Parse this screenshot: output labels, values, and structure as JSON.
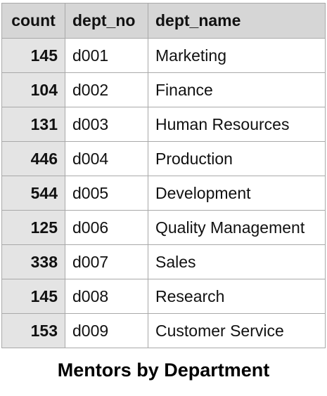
{
  "table": {
    "headers": [
      "count",
      "dept_no",
      "dept_name"
    ],
    "rows": [
      {
        "count": "145",
        "dept_no": "d001",
        "dept_name": "Marketing"
      },
      {
        "count": "104",
        "dept_no": "d002",
        "dept_name": "Finance"
      },
      {
        "count": "131",
        "dept_no": "d003",
        "dept_name": "Human Resources"
      },
      {
        "count": "446",
        "dept_no": "d004",
        "dept_name": "Production"
      },
      {
        "count": "544",
        "dept_no": "d005",
        "dept_name": "Development"
      },
      {
        "count": "125",
        "dept_no": "d006",
        "dept_name": "Quality Management"
      },
      {
        "count": "338",
        "dept_no": "d007",
        "dept_name": "Sales"
      },
      {
        "count": "145",
        "dept_no": "d008",
        "dept_name": "Research"
      },
      {
        "count": "153",
        "dept_no": "d009",
        "dept_name": "Customer Service"
      }
    ]
  },
  "caption": "Mentors by Department",
  "colors": {
    "header_bg": "#d6d6d6",
    "count_col_bg": "#e4e4e4",
    "border": "#a9a9a9"
  }
}
